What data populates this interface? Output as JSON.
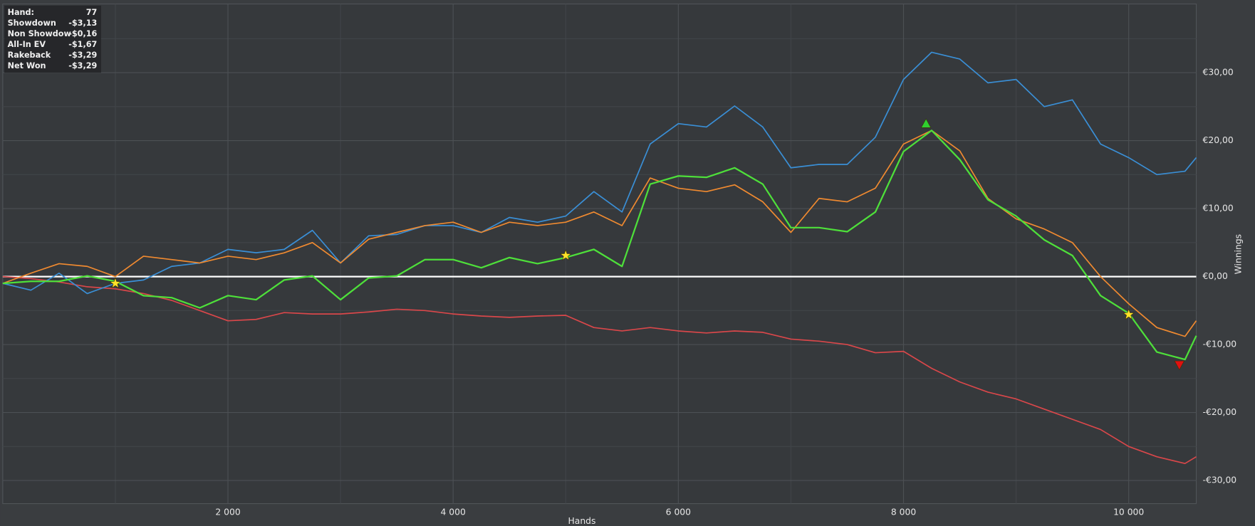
{
  "chart_data": {
    "type": "line",
    "info_box": {
      "rows": [
        [
          "Hand:",
          77
        ],
        [
          "Showdown",
          "-$3,13"
        ],
        [
          "Non Showdow",
          "-$0,16"
        ],
        [
          "All-In EV",
          "-$1,67"
        ],
        [
          "Rakeback",
          "-$3,29"
        ],
        [
          "Net Won",
          "-$3,29"
        ]
      ]
    },
    "x_label": "Hands",
    "y_label": "Winnings",
    "xlim": [
      0,
      10600
    ],
    "ylim": [
      -33.4,
      40.1
    ],
    "xticks": [
      {
        "value": 2000,
        "label": "2 000"
      },
      {
        "value": 4000,
        "label": "4 000"
      },
      {
        "value": 6000,
        "label": "6 000"
      },
      {
        "value": 8000,
        "label": "8 000"
      },
      {
        "value": 10000,
        "label": "10 000"
      }
    ],
    "yticks": [
      {
        "value": -30,
        "label": "-€30,00"
      },
      {
        "value": -20,
        "label": "-€20,00"
      },
      {
        "value": -10,
        "label": "-€10,00"
      },
      {
        "value": 0,
        "label": "€0,00"
      },
      {
        "value": 10,
        "label": "€10,00"
      },
      {
        "value": 20,
        "label": "€20,00"
      },
      {
        "value": 30,
        "label": "€30,00"
      }
    ],
    "minor_xticks": [
      1000,
      3000,
      5000,
      7000,
      9000
    ],
    "minor_yticks": [
      -25,
      -15,
      -5,
      5,
      15,
      25,
      35
    ],
    "grid": true,
    "zero_line_color": "#ffffff",
    "x": [
      0,
      250,
      500,
      750,
      1000,
      1250,
      1500,
      1750,
      2000,
      2250,
      2500,
      2750,
      3000,
      3250,
      3500,
      3750,
      4000,
      4250,
      4500,
      4750,
      5000,
      5250,
      5500,
      5750,
      6000,
      6250,
      6500,
      6750,
      7000,
      7250,
      7500,
      7750,
      8000,
      8250,
      8500,
      8750,
      9000,
      9250,
      9500,
      9750,
      10000,
      10250,
      10500,
      10600
    ],
    "series": [
      {
        "color": "#d9474a",
        "values": [
          0,
          -0.3,
          -0.8,
          -1.5,
          -1.8,
          -2.5,
          -3.5,
          -5,
          -6.5,
          -6.3,
          -5.3,
          -5.5,
          -5.5,
          -5.2,
          -4.8,
          -5,
          -5.5,
          -5.8,
          -6,
          -5.8,
          -5.7,
          -7.5,
          -8,
          -7.5,
          -8,
          -8.3,
          -8,
          -8.2,
          -9.2,
          -9.5,
          -10,
          -11.2,
          -11,
          -13.5,
          -15.5,
          -17,
          -18,
          -19.5,
          -21,
          -22.5,
          -25,
          -26.5,
          -27.5,
          -26.5
        ]
      },
      {
        "color": "#3a8fd6",
        "values": [
          -1,
          -2,
          0.5,
          -2.5,
          -1,
          -0.5,
          1.5,
          2,
          4,
          3.5,
          4,
          6.8,
          2,
          6,
          6.2,
          7.5,
          7.5,
          6.5,
          8.7,
          8,
          8.9,
          12.5,
          9.5,
          19.5,
          22.5,
          22,
          25.1,
          22,
          16,
          16.5,
          16.5,
          20.5,
          29,
          33,
          32,
          28.5,
          29,
          25,
          26,
          19.5,
          17.5,
          15,
          15.5,
          17.5
        ]
      },
      {
        "color": "#f08a30",
        "values": [
          -1,
          0.5,
          1.9,
          1.5,
          0,
          3,
          2.5,
          2,
          3,
          2.5,
          3.5,
          5,
          2,
          5.5,
          6.5,
          7.5,
          8,
          6.5,
          8,
          7.5,
          8,
          9.5,
          7.5,
          14.5,
          13,
          12.5,
          13.5,
          11,
          6.5,
          11.5,
          11,
          13,
          19.5,
          21.5,
          18.5,
          11.5,
          8.5,
          7,
          5,
          0,
          -4,
          -7.5,
          -8.8,
          -6.5
        ]
      },
      {
        "color": "#4ee03a",
        "values": [
          -1,
          -0.7,
          -0.7,
          0.1,
          -0.7,
          -2.8,
          -3.1,
          -4.6,
          -2.8,
          -3.4,
          -0.5,
          0.1,
          -3.4,
          -0.2,
          0.1,
          2.5,
          2.5,
          1.3,
          2.8,
          1.9,
          2.8,
          4,
          1.5,
          13.6,
          14.8,
          14.6,
          16,
          13.6,
          7.2,
          7.2,
          6.6,
          9.5,
          18.4,
          21.5,
          17.2,
          11.3,
          8.9,
          5.4,
          3.1,
          -2.8,
          -5.4,
          -11.1,
          -12.2,
          -8.7
        ]
      }
    ],
    "markers": [
      {
        "x": 1000,
        "y": -1,
        "shape": "star",
        "color": "#ffe22a"
      },
      {
        "x": 5000,
        "y": 3.1,
        "shape": "star",
        "color": "#ffe22a"
      },
      {
        "x": 10000,
        "y": -5.6,
        "shape": "star",
        "color": "#ffe22a"
      },
      {
        "x": 8200,
        "y": 22.5,
        "shape": "triangle-up",
        "color": "#2fcf2f"
      },
      {
        "x": 10450,
        "y": -13,
        "shape": "triangle-down",
        "color": "#e01010"
      }
    ]
  }
}
